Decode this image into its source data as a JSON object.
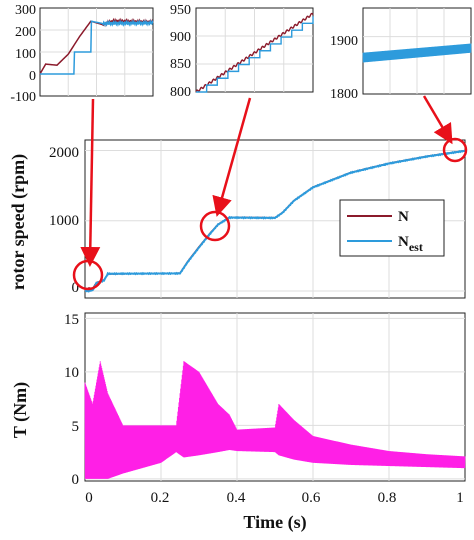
{
  "chart_data": [
    {
      "type": "line",
      "id": "speed",
      "ylabel": "rotor speed (rpm)",
      "xlim": [
        0,
        1
      ],
      "ylim": [
        -100,
        2150
      ],
      "yticks": [
        "0",
        "1000",
        "2000"
      ],
      "grid": true,
      "legend": "right",
      "series": [
        {
          "name": "N",
          "name_sub": "",
          "color": "#8b1a2b",
          "x": [
            0,
            0.01,
            0.02,
            0.03,
            0.05,
            0.06,
            0.25,
            0.27,
            0.3,
            0.33,
            0.35,
            0.38,
            0.5,
            0.52,
            0.55,
            0.6,
            0.7,
            0.8,
            0.9,
            1.0
          ],
          "y": [
            0,
            45,
            35,
            120,
            160,
            240,
            255,
            420,
            630,
            830,
            950,
            1050,
            1045,
            1120,
            1290,
            1480,
            1690,
            1820,
            1920,
            2000
          ]
        },
        {
          "name": "N",
          "name_sub": "est",
          "color": "#2d9bdc",
          "x": [
            0,
            0.01,
            0.02,
            0.03,
            0.05,
            0.06,
            0.25,
            0.27,
            0.3,
            0.33,
            0.35,
            0.38,
            0.5,
            0.52,
            0.55,
            0.6,
            0.7,
            0.8,
            0.9,
            1.0
          ],
          "y": [
            0,
            0,
            10,
            110,
            150,
            245,
            250,
            410,
            620,
            820,
            945,
            1045,
            1040,
            1115,
            1285,
            1475,
            1685,
            1815,
            1915,
            1995
          ]
        }
      ]
    },
    {
      "type": "line",
      "id": "torque",
      "ylabel": "T (Nm)",
      "xlabel": "Time (s)",
      "xlim": [
        0,
        1
      ],
      "ylim": [
        -0.2,
        15.5
      ],
      "xticks": [
        "0",
        "0.2",
        "0.4",
        "0.6",
        "0.8",
        "1"
      ],
      "yticks": [
        "0",
        "5",
        "10",
        "15"
      ],
      "grid": true,
      "series": [
        {
          "name": "",
          "color": "#ff1fe6",
          "x": [
            0,
            0.02,
            0.04,
            0.06,
            0.1,
            0.2,
            0.24,
            0.26,
            0.3,
            0.35,
            0.38,
            0.4,
            0.5,
            0.51,
            0.55,
            0.6,
            0.7,
            0.8,
            0.9,
            1.0
          ],
          "upper": [
            9,
            7,
            11,
            8,
            5,
            5,
            5,
            11,
            10,
            7,
            6,
            4.6,
            4.8,
            7,
            5.5,
            4,
            3.2,
            2.6,
            2.3,
            2.1
          ],
          "lower": [
            0,
            0,
            0,
            0,
            0.5,
            1.5,
            2.5,
            2,
            2.2,
            2.5,
            2.7,
            2.6,
            2.5,
            2.2,
            1.8,
            1.5,
            1.3,
            1.2,
            1.1,
            1.0
          ]
        }
      ]
    },
    {
      "type": "line",
      "id": "inset1",
      "xlim": [
        0,
        1
      ],
      "ylim": [
        -100,
        300
      ],
      "yticks": [
        "300",
        "200",
        "100",
        "0",
        "-100"
      ],
      "grid": true,
      "series": [
        {
          "name": "N",
          "color": "#8b1a2b",
          "x": [
            0,
            0.05,
            0.15,
            0.25,
            0.35,
            0.45,
            0.55,
            0.65,
            1.0
          ],
          "y": [
            0,
            45,
            40,
            90,
            170,
            240,
            225,
            240,
            235
          ]
        },
        {
          "name": "N_est",
          "color": "#2d9bdc",
          "x": [
            0,
            0.3,
            0.3,
            0.45,
            0.45,
            0.55,
            1.0
          ],
          "y": [
            0,
            0,
            100,
            100,
            240,
            230,
            232
          ]
        }
      ]
    },
    {
      "type": "line",
      "id": "inset2",
      "xlim": [
        0,
        1
      ],
      "ylim": [
        800,
        950
      ],
      "yticks": [
        "950",
        "900",
        "850",
        "800"
      ],
      "grid": true,
      "series": [
        {
          "name": "N",
          "color": "#8b1a2b",
          "x": [
            0,
            1
          ],
          "y": [
            800,
            940
          ]
        },
        {
          "name": "N_est",
          "color": "#2d9bdc",
          "steps": 11,
          "x": [
            0,
            1
          ],
          "y": [
            800,
            935
          ]
        }
      ]
    },
    {
      "type": "line",
      "id": "inset3",
      "xlim": [
        0,
        1
      ],
      "ylim": [
        1800,
        1950
      ],
      "yticks": [
        "1900",
        "1800"
      ],
      "grid": true,
      "series": [
        {
          "name": "N_est",
          "color": "#2d9bdc",
          "band": true,
          "x": [
            0,
            1
          ],
          "lower": [
            1855,
            1872
          ],
          "upper": [
            1872,
            1888
          ]
        }
      ]
    }
  ],
  "annotations": {
    "marker_color": "#e8101a",
    "arrows": "red arrows link red circles on speed curve to zoom insets"
  }
}
